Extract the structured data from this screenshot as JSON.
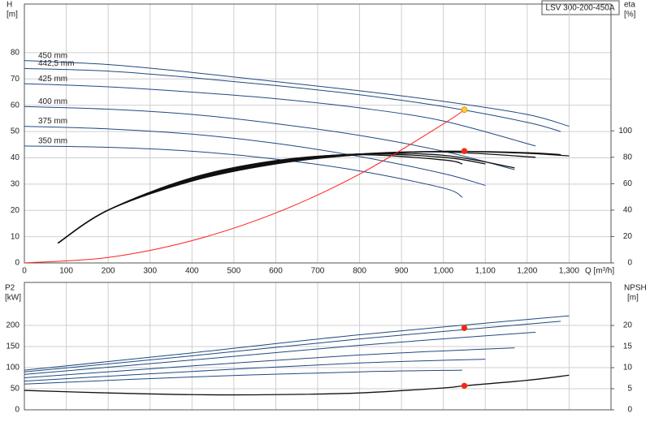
{
  "header": {
    "title": "LSV 300-200-450A"
  },
  "chart_data": [
    {
      "type": "line",
      "y_label": "H",
      "y_unit": "[m]",
      "y2_label": "eta",
      "y2_unit": "[%]",
      "x_label": "Q [m³/h]",
      "xlim": [
        0,
        1400
      ],
      "xticks": [
        0,
        100,
        200,
        300,
        400,
        500,
        600,
        700,
        800,
        900,
        {
          "value": 1000,
          "label": "1,000"
        },
        {
          "value": 1100,
          "label": "1,100"
        },
        {
          "value": 1200,
          "label": "1,200"
        },
        {
          "value": 1300,
          "label": "1,300"
        }
      ],
      "ylim": [
        0,
        98.5
      ],
      "yticks": [
        0,
        10,
        20,
        30,
        40,
        50,
        60,
        70,
        80
      ],
      "y2lim": [
        0,
        196
      ],
      "y2ticks": [
        0,
        20,
        40,
        60,
        80,
        100
      ],
      "grid": true,
      "series": [
        {
          "name": "450 mm",
          "color": "#1f4a80",
          "x": [
            0,
            200,
            400,
            600,
            800,
            1000,
            1200,
            1300
          ],
          "values": [
            77,
            75.5,
            72.5,
            69,
            65.5,
            61.5,
            56.5,
            52
          ]
        },
        {
          "name": "442,5 mm",
          "color": "#1f4a80",
          "x": [
            0,
            200,
            400,
            600,
            800,
            1000,
            1200,
            1280
          ],
          "values": [
            74,
            73,
            70.5,
            67.5,
            64,
            59.5,
            53.5,
            50
          ]
        },
        {
          "name": "425 mm",
          "color": "#1f4a80",
          "x": [
            0,
            200,
            400,
            600,
            800,
            1000,
            1220
          ],
          "values": [
            68.2,
            67,
            65,
            62.5,
            59,
            54,
            44.5
          ]
        },
        {
          "name": "400 mm",
          "color": "#1f4a80",
          "x": [
            0,
            200,
            400,
            600,
            800,
            1000,
            1170
          ],
          "values": [
            59.5,
            58.5,
            56.5,
            53,
            48.5,
            42.5,
            35.5
          ]
        },
        {
          "name": "375 mm",
          "color": "#1f4a80",
          "x": [
            0,
            200,
            400,
            600,
            800,
            1000,
            1100
          ],
          "values": [
            52,
            51,
            49,
            45.5,
            40.5,
            34,
            29.5
          ]
        },
        {
          "name": "350 mm",
          "color": "#1f4a80",
          "x": [
            0,
            200,
            400,
            600,
            800,
            1000,
            1045
          ],
          "values": [
            44.5,
            44,
            42.5,
            39.5,
            35,
            28.5,
            25
          ]
        },
        {
          "color": "#111111",
          "axis": "y2",
          "x": [
            80,
            200,
            400,
            600,
            800,
            1000,
            1200,
            1300
          ],
          "values": [
            15,
            40,
            62,
            75,
            82,
            84.5,
            83,
            81
          ]
        },
        {
          "color": "#111111",
          "axis": "y2",
          "x": [
            80,
            200,
            400,
            600,
            800,
            1000,
            1200,
            1280
          ],
          "values": [
            15,
            40,
            62.5,
            75.5,
            82,
            84.5,
            83.5,
            82
          ]
        },
        {
          "color": "#111111",
          "axis": "y2",
          "x": [
            80,
            200,
            400,
            600,
            800,
            1000,
            1220
          ],
          "values": [
            15,
            40,
            63,
            76,
            82.5,
            84,
            80
          ]
        },
        {
          "color": "#111111",
          "axis": "y2",
          "x": [
            80,
            200,
            400,
            600,
            800,
            1000,
            1170
          ],
          "values": [
            15,
            40,
            63.5,
            76.5,
            82.5,
            81.5,
            72
          ]
        },
        {
          "color": "#111111",
          "axis": "y2",
          "x": [
            80,
            200,
            400,
            600,
            800,
            1000,
            1100
          ],
          "values": [
            15,
            40,
            64,
            77,
            82.5,
            80,
            75
          ]
        },
        {
          "color": "#111111",
          "axis": "y2",
          "x": [
            80,
            200,
            400,
            600,
            800,
            1000,
            1045
          ],
          "values": [
            15,
            40,
            64.5,
            77.5,
            82,
            78,
            75
          ]
        },
        {
          "color": "#ff2020",
          "x": [
            0,
            200,
            400,
            600,
            800,
            1000,
            1050
          ],
          "values": [
            0,
            2.1,
            8.5,
            19,
            33.8,
            52.9,
            58.3
          ]
        }
      ],
      "markers": [
        {
          "color": "#ffd21f",
          "x": 1050,
          "value": 58.3
        },
        {
          "color": "#ff2020",
          "axis": "y2",
          "x": 1050,
          "value": 84.7
        }
      ]
    },
    {
      "type": "line",
      "y_label": "P2",
      "y_unit": "[kW]",
      "y2_label": "NPSH",
      "y2_unit": "[m]",
      "xlim": [
        0,
        1400
      ],
      "ylim": [
        0,
        302
      ],
      "yticks": [
        0,
        50,
        100,
        150,
        200
      ],
      "y2lim": [
        0,
        30.2
      ],
      "y2ticks": [
        0,
        5,
        10,
        15,
        20
      ],
      "grid": true,
      "series": [
        {
          "color": "#1f4a80",
          "x": [
            0,
            400,
            800,
            1300
          ],
          "values": [
            94,
            135,
            178,
            223
          ]
        },
        {
          "color": "#1f4a80",
          "x": [
            0,
            400,
            800,
            1280
          ],
          "values": [
            90,
            128,
            168,
            210
          ]
        },
        {
          "color": "#1f4a80",
          "x": [
            0,
            400,
            800,
            1220
          ],
          "values": [
            84,
            118,
            153,
            184
          ]
        },
        {
          "color": "#1f4a80",
          "x": [
            0,
            400,
            800,
            1170
          ],
          "values": [
            76,
            104,
            130,
            147
          ]
        },
        {
          "color": "#1f4a80",
          "x": [
            0,
            400,
            800,
            1100
          ],
          "values": [
            68,
            91,
            111,
            120
          ]
        },
        {
          "color": "#1f4a80",
          "x": [
            0,
            400,
            800,
            1045
          ],
          "values": [
            61,
            78,
            90,
            94
          ]
        },
        {
          "color": "#111111",
          "axis": "y2",
          "x": [
            0,
            200,
            400,
            600,
            800,
            1000,
            1050,
            1200,
            1300
          ],
          "values": [
            4.6,
            4,
            3.6,
            3.6,
            4,
            5.2,
            5.7,
            7,
            8.2
          ]
        }
      ],
      "markers": [
        {
          "color": "#ff2020",
          "x": 1050,
          "value": 194
        },
        {
          "color": "#ff2020",
          "axis": "y2",
          "x": 1050,
          "value": 5.7
        }
      ]
    }
  ]
}
